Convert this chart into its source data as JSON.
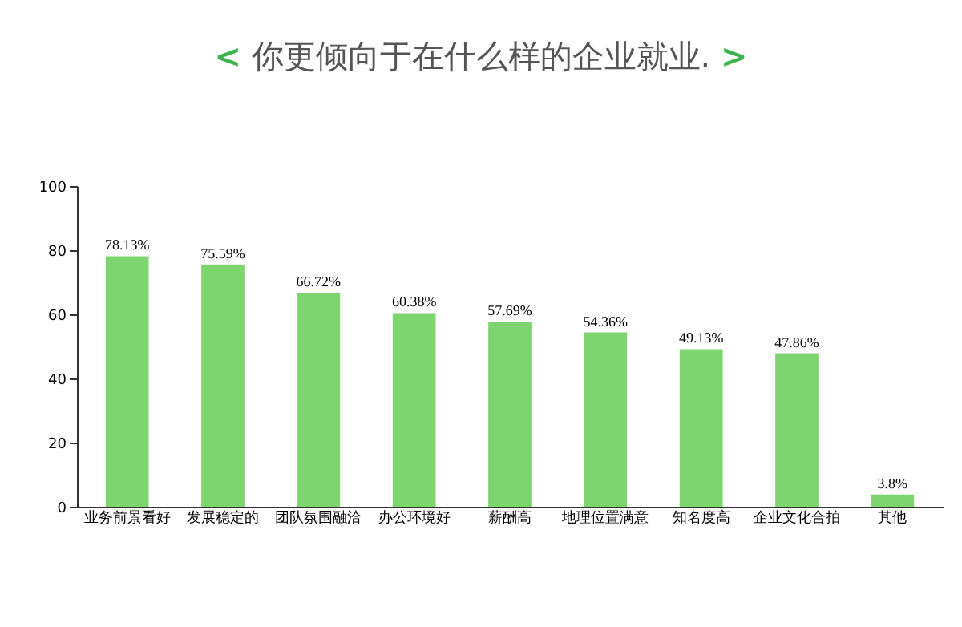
{
  "chart_data": {
    "type": "bar",
    "title": "< 你更倾向于在什么样的企业就业. >",
    "categories": [
      "业务前景看好",
      "发展稳定的",
      "团队氛围融洽",
      "办公环境好",
      "薪酬高",
      "地理位置满意",
      "知名度高",
      "企业文化合拍",
      "其他"
    ],
    "values": [
      78.13,
      75.59,
      66.72,
      60.38,
      57.69,
      54.36,
      49.13,
      47.86,
      3.8
    ],
    "value_labels": [
      "78.13%",
      "75.59%",
      "66.72%",
      "60.38%",
      "57.69%",
      "54.36%",
      "49.13%",
      "47.86%",
      "3.8%"
    ],
    "color": "#7ed56f",
    "ylim": [
      0,
      100
    ],
    "yticks": [
      0,
      20,
      40,
      60,
      80,
      100
    ],
    "grid": false
  }
}
